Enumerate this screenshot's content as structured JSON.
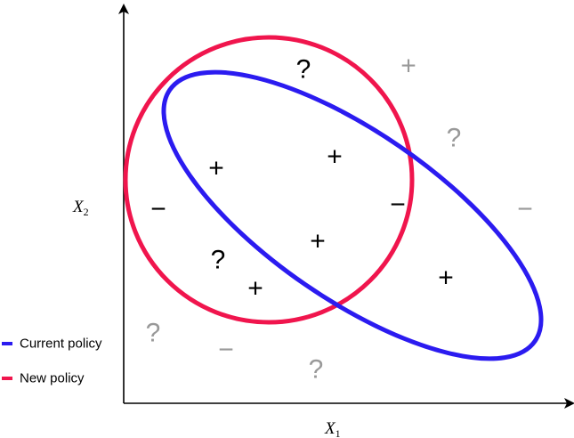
{
  "colors": {
    "current_policy": "#2b1bf0",
    "new_policy": "#f0154d",
    "inside_mark": "#000000",
    "outside_mark": "#999999",
    "axis": "#000000"
  },
  "axes": {
    "x_label": "X",
    "x_sub": "1",
    "y_label": "X",
    "y_sub": "2"
  },
  "legend": {
    "items": [
      {
        "label": "Current policy",
        "series": "current_policy"
      },
      {
        "label": "New policy",
        "series": "new_policy"
      }
    ]
  },
  "symbols": {
    "plus": "+",
    "minus": "−",
    "question": "?"
  },
  "marks": [
    {
      "symbol": "question",
      "region": "inside"
    },
    {
      "symbol": "plus",
      "region": "outside"
    },
    {
      "symbol": "question",
      "region": "outside"
    },
    {
      "symbol": "plus",
      "region": "inside"
    },
    {
      "symbol": "plus",
      "region": "inside"
    },
    {
      "symbol": "minus",
      "region": "inside"
    },
    {
      "symbol": "minus",
      "region": "inside"
    },
    {
      "symbol": "minus",
      "region": "outside"
    },
    {
      "symbol": "plus",
      "region": "inside"
    },
    {
      "symbol": "question",
      "region": "inside"
    },
    {
      "symbol": "plus",
      "region": "inside"
    },
    {
      "symbol": "plus",
      "region": "inside"
    },
    {
      "symbol": "question",
      "region": "outside"
    },
    {
      "symbol": "minus",
      "region": "outside"
    },
    {
      "symbol": "question",
      "region": "outside"
    }
  ]
}
